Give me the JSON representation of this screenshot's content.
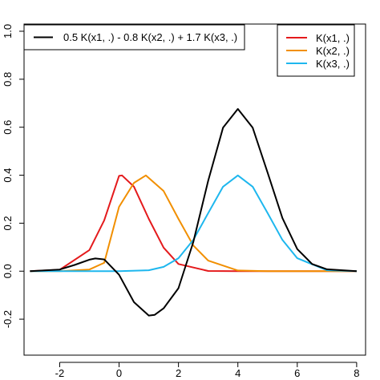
{
  "chart_data": {
    "type": "line",
    "title": "",
    "xlabel": "",
    "ylabel": "",
    "xlim": [
      -3.2,
      8.3
    ],
    "ylim": [
      -0.35,
      1.03
    ],
    "x_ticks": [
      "-2",
      "0",
      "2",
      "4",
      "6",
      "8"
    ],
    "y_ticks": [
      "-0.2",
      "0.0",
      "0.2",
      "0.4",
      "0.6",
      "0.8",
      "1.0"
    ],
    "grid": false,
    "legends": [
      {
        "position": "top-left",
        "entries": [
          "0.5 K(x1, .) - 0.8 K(x2, .) + 1.7 K(x3, .)"
        ]
      },
      {
        "position": "top-right",
        "entries": [
          "K(x1, .)",
          "K(x2, .)",
          "K(x3, .)"
        ]
      }
    ],
    "series": [
      {
        "name": "K(x1, .)",
        "color": "#e41a1c",
        "x": [
          -3,
          -2,
          -1,
          -0.5,
          0,
          0.1,
          0.5,
          1,
          1.5,
          2,
          3,
          4,
          5,
          6,
          7,
          8
        ],
        "y": [
          0.0,
          0.006,
          0.088,
          0.212,
          0.397,
          0.399,
          0.352,
          0.218,
          0.098,
          0.03,
          0.001,
          0.0,
          0.0,
          0.0,
          0.0,
          0.0
        ]
      },
      {
        "name": "K(x2, .)",
        "color": "#f18f00",
        "x": [
          -3,
          -2,
          -1,
          -0.5,
          0,
          0.5,
          0.9,
          1.5,
          2,
          2.5,
          3,
          4,
          5,
          6,
          7,
          8
        ],
        "y": [
          0.0,
          0.0,
          0.007,
          0.035,
          0.268,
          0.368,
          0.399,
          0.334,
          0.218,
          0.107,
          0.044,
          0.003,
          0.0,
          0.0,
          0.0,
          0.0
        ]
      },
      {
        "name": "K(x3, .)",
        "color": "#1eb7ee",
        "x": [
          -3,
          -1,
          0,
          1,
          1.5,
          2,
          2.5,
          3,
          3.5,
          4,
          4.5,
          5,
          5.5,
          6,
          7,
          8
        ],
        "y": [
          0.0,
          0.0,
          0.0,
          0.004,
          0.018,
          0.054,
          0.13,
          0.242,
          0.352,
          0.399,
          0.352,
          0.242,
          0.13,
          0.054,
          0.004,
          0.0
        ]
      },
      {
        "name": "0.5 K(x1, .) - 0.8 K(x2, .) + 1.7 K(x3, .)",
        "color": "#000000",
        "x": [
          -3,
          -2,
          -1.5,
          -1,
          -0.8,
          -0.5,
          0,
          0.5,
          1,
          1.2,
          1.5,
          2,
          2.5,
          3,
          3.5,
          4,
          4.5,
          5,
          5.5,
          6,
          6.5,
          7,
          8
        ],
        "y": [
          0.0,
          0.007,
          0.026,
          0.048,
          0.053,
          0.049,
          -0.015,
          -0.129,
          -0.185,
          -0.182,
          -0.155,
          -0.071,
          0.121,
          0.377,
          0.598,
          0.676,
          0.598,
          0.411,
          0.221,
          0.092,
          0.03,
          0.008,
          0.0
        ]
      }
    ]
  }
}
